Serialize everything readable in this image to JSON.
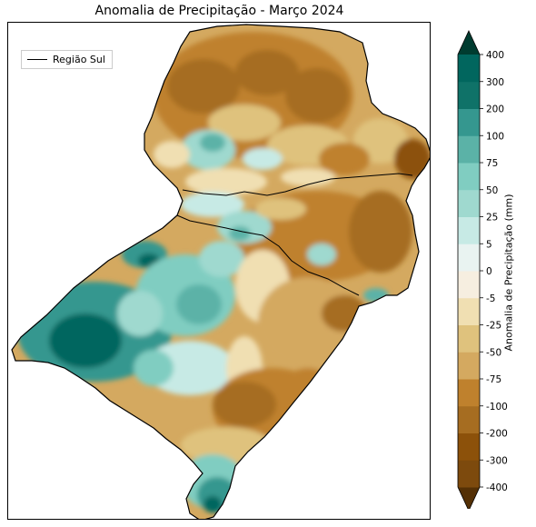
{
  "title": "Anomalia de Precipitação - Março 2024",
  "legend": {
    "label": "Região Sul"
  },
  "colorbar": {
    "label": "Anomalia de Precipitação (mm)",
    "levels": [
      "-400",
      "-300",
      "-200",
      "-100",
      "-75",
      "-50",
      "-25",
      "-5",
      "0",
      "5",
      "25",
      "50",
      "75",
      "100",
      "200",
      "300",
      "400"
    ],
    "colors": [
      "#543005",
      "#7d4a0d",
      "#8c510a",
      "#a66d21",
      "#bf812d",
      "#d4a960",
      "#dfc27d",
      "#f0dfb2",
      "#f6eee0",
      "#e9f3f1",
      "#c7eae5",
      "#9fd9cf",
      "#80cdc1",
      "#5bb2a7",
      "#35978f",
      "#0f7268",
      "#01665e",
      "#003c30"
    ]
  }
}
